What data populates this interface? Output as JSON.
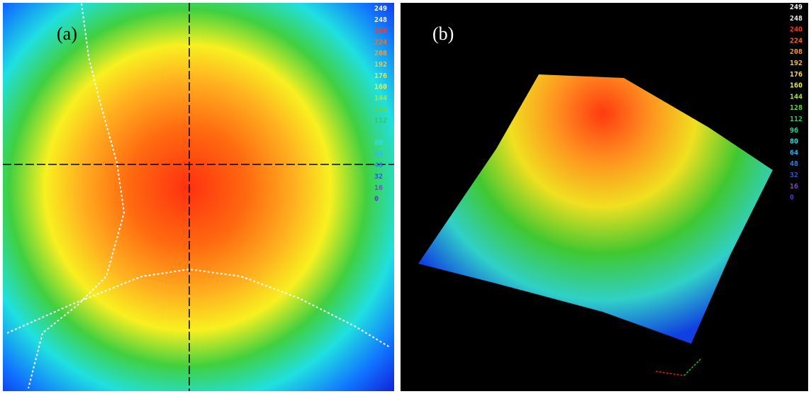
{
  "panels": [
    {
      "label": "(a)"
    },
    {
      "label": "(b)"
    }
  ],
  "color_scale": [
    {
      "value": "249",
      "color": "#ffffff"
    },
    {
      "value": "248",
      "color": "#f2f2f2"
    },
    {
      "value": "240",
      "color": "#ff3a1a"
    },
    {
      "value": "224",
      "color": "#ff6a20"
    },
    {
      "value": "208",
      "color": "#ff9a30"
    },
    {
      "value": "192",
      "color": "#ffc040"
    },
    {
      "value": "176",
      "color": "#ffe040"
    },
    {
      "value": "160",
      "color": "#e8f040"
    },
    {
      "value": "144",
      "color": "#a8e840"
    },
    {
      "value": "128",
      "color": "#60d840"
    },
    {
      "value": "112",
      "color": "#30c860"
    },
    {
      "value": "96",
      "color": "#30d8a0"
    },
    {
      "value": "80",
      "color": "#30e0e0"
    },
    {
      "value": "64",
      "color": "#30b8f0"
    },
    {
      "value": "48",
      "color": "#3080f0"
    },
    {
      "value": "32",
      "color": "#3050f0"
    },
    {
      "value": "16",
      "color": "#8040e0"
    },
    {
      "value": "0",
      "color": "#6030d0"
    }
  ]
}
